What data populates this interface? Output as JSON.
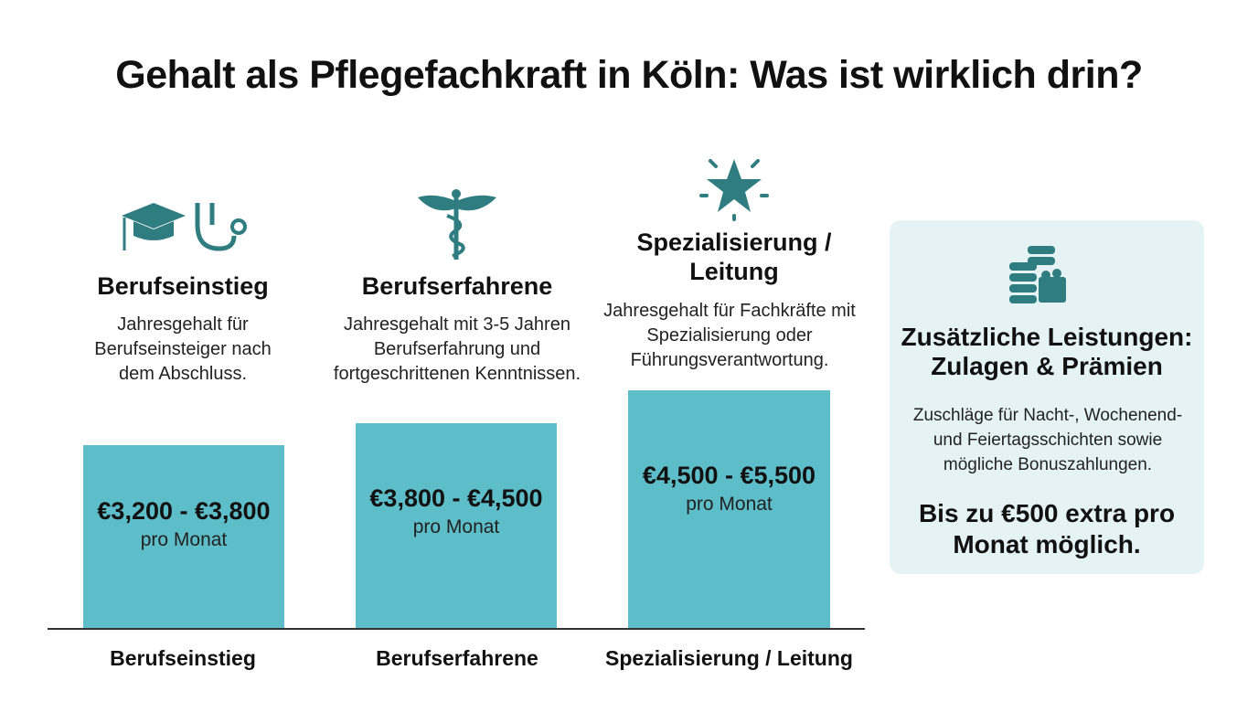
{
  "title": "Gehalt als Pflegefachkraft in Köln: Was ist wirklich drin?",
  "columns": [
    {
      "heading": "Berufseinstieg",
      "description": "Jahresgehalt für Berufseinsteiger nach dem Abschluss.",
      "range": "€3,200 - €3,800",
      "unit": "pro Monat",
      "label": "Berufseinstieg"
    },
    {
      "heading": "Berufserfahrene",
      "description": "Jahresgehalt mit 3-5 Jahren Berufserfahrung und fortgeschrittenen Kenntnissen.",
      "range": "€3,800 - €4,500",
      "unit": "pro Monat",
      "label": "Berufserfahrene"
    },
    {
      "heading": "Spezialisierung / Leitung",
      "description": "Jahresgehalt für Fachkräfte mit Spezialisierung oder Führungsverantwortung.",
      "range": "€4,500 - €5,500",
      "unit": "pro Monat",
      "label": "Spezialisierung / Leitung"
    }
  ],
  "panel": {
    "heading": "Zusätzliche Leistungen: Zulagen & Prämien",
    "description": "Zuschläge für Nacht-, Wochenend- und Feiertagsschichten sowie mögliche Bonuszahlungen.",
    "highlight": "Bis zu €500 extra pro Monat möglich."
  }
}
